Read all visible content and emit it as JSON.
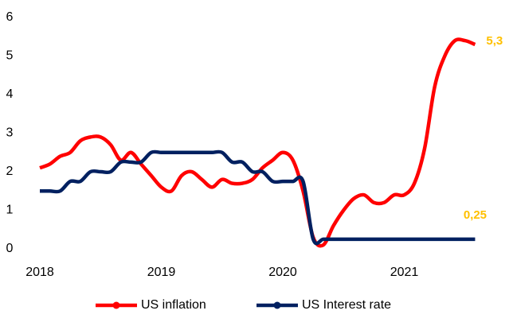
{
  "chart_data": {
    "type": "line",
    "x": [
      2018.0,
      2018.083,
      2018.167,
      2018.25,
      2018.333,
      2018.417,
      2018.5,
      2018.583,
      2018.667,
      2018.75,
      2018.833,
      2018.917,
      2019.0,
      2019.083,
      2019.167,
      2019.25,
      2019.333,
      2019.417,
      2019.5,
      2019.583,
      2019.667,
      2019.75,
      2019.833,
      2019.917,
      2020.0,
      2020.083,
      2020.167,
      2020.25,
      2020.333,
      2020.417,
      2020.5,
      2020.583,
      2020.667,
      2020.75,
      2020.833,
      2020.917,
      2021.0,
      2021.083,
      2021.167,
      2021.25,
      2021.333,
      2021.417,
      2021.5,
      2021.583
    ],
    "series": [
      {
        "name": "US inflation",
        "color": "#ff0000",
        "values": [
          2.1,
          2.2,
          2.4,
          2.5,
          2.8,
          2.9,
          2.9,
          2.7,
          2.3,
          2.5,
          2.2,
          1.9,
          1.6,
          1.5,
          1.9,
          2.0,
          1.8,
          1.6,
          1.8,
          1.7,
          1.7,
          1.8,
          2.1,
          2.3,
          2.5,
          2.3,
          1.5,
          0.3,
          0.1,
          0.6,
          1.0,
          1.3,
          1.4,
          1.2,
          1.2,
          1.4,
          1.4,
          1.7,
          2.6,
          4.2,
          5.0,
          5.4,
          5.4,
          5.3
        ],
        "value_labels": [
          null,
          null,
          null,
          null,
          null,
          null,
          null,
          null,
          null,
          null,
          null,
          null,
          null,
          null,
          null,
          null,
          null,
          null,
          null,
          null,
          null,
          null,
          null,
          null,
          null,
          null,
          null,
          null,
          null,
          null,
          null,
          null,
          null,
          null,
          null,
          null,
          null,
          null,
          null,
          null,
          null,
          null,
          null,
          "5,3"
        ]
      },
      {
        "name": "US Interest rate",
        "color": "#002060",
        "values": [
          1.5,
          1.5,
          1.5,
          1.75,
          1.75,
          2.0,
          2.0,
          2.0,
          2.25,
          2.25,
          2.25,
          2.5,
          2.5,
          2.5,
          2.5,
          2.5,
          2.5,
          2.5,
          2.5,
          2.25,
          2.25,
          2.0,
          2.0,
          1.75,
          1.75,
          1.75,
          1.75,
          0.25,
          0.25,
          0.25,
          0.25,
          0.25,
          0.25,
          0.25,
          0.25,
          0.25,
          0.25,
          0.25,
          0.25,
          0.25,
          0.25,
          0.25,
          0.25,
          0.25
        ],
        "value_labels": [
          null,
          null,
          null,
          null,
          null,
          null,
          null,
          null,
          null,
          null,
          null,
          null,
          null,
          null,
          null,
          null,
          null,
          null,
          null,
          null,
          null,
          null,
          null,
          null,
          null,
          null,
          null,
          null,
          null,
          null,
          null,
          null,
          null,
          null,
          null,
          null,
          null,
          null,
          null,
          null,
          null,
          null,
          null,
          "0,25"
        ]
      }
    ],
    "label_color": "#ffc000",
    "xlim": [
      2017.9,
      2021.75
    ],
    "xticks": [
      2018,
      2019,
      2020,
      2021
    ],
    "ylim": [
      0,
      6
    ],
    "yticks": [
      0,
      1,
      2,
      3,
      4,
      5,
      6
    ],
    "grid": false,
    "legend": "bottom"
  }
}
